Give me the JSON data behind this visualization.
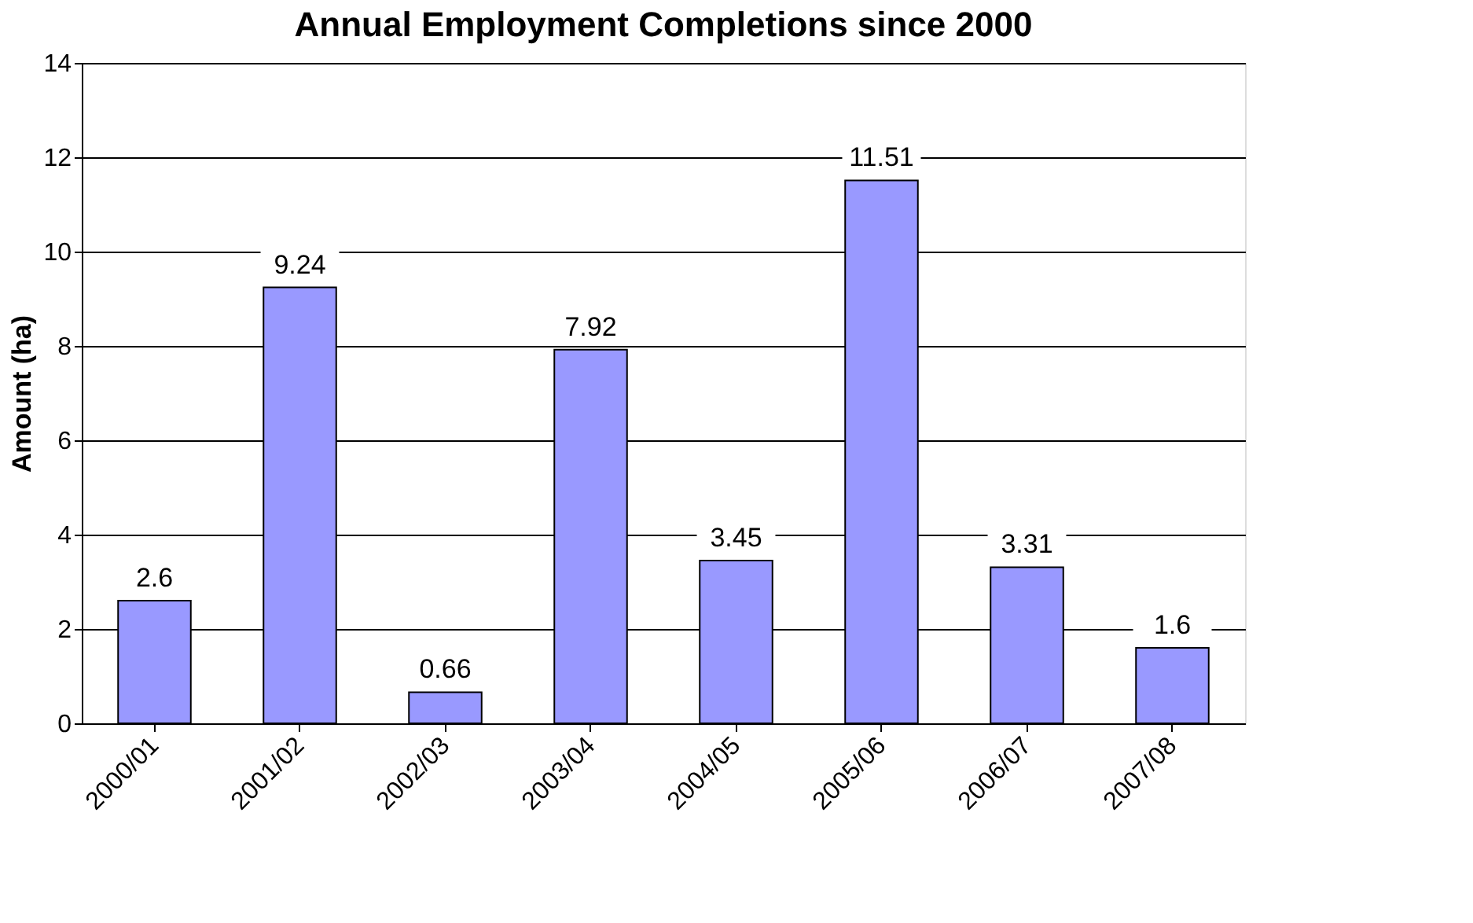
{
  "chart_data": {
    "type": "bar",
    "title": "Annual Employment Completions since 2000",
    "ylabel": "Amount (ha)",
    "categories": [
      "2000/01",
      "2001/02",
      "2002/03",
      "2003/04",
      "2004/05",
      "2005/06",
      "2006/07",
      "2007/08"
    ],
    "values": [
      2.6,
      9.24,
      0.66,
      7.92,
      3.45,
      11.51,
      3.31,
      1.6
    ],
    "color": "#9999ff",
    "ylim": [
      0,
      14
    ],
    "yticks": [
      0,
      2,
      4,
      6,
      8,
      10,
      12,
      14
    ],
    "grid": "y",
    "data_labels": true
  }
}
